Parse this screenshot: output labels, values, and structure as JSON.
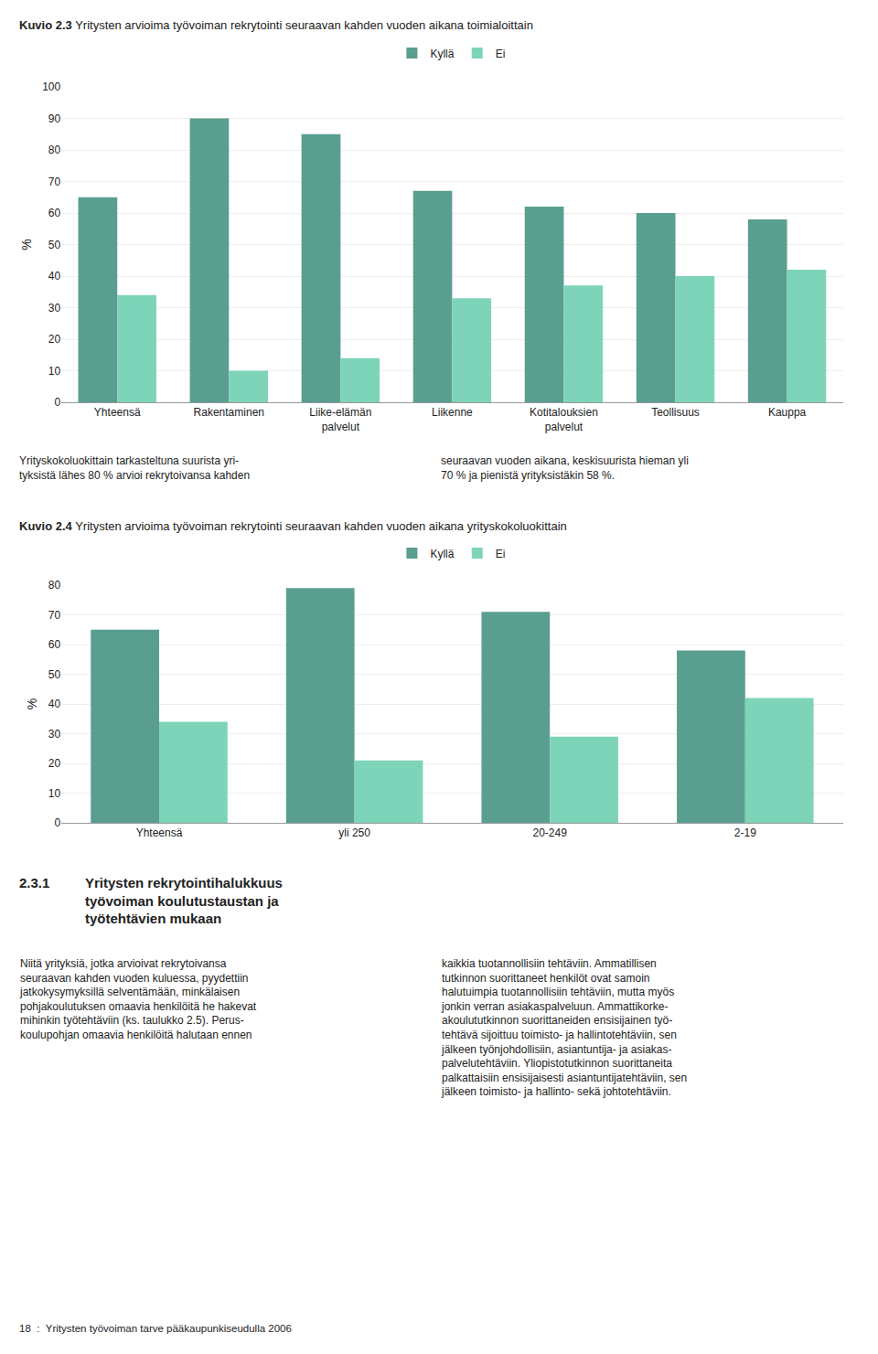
{
  "chart_data": [
    {
      "type": "bar",
      "title": "Kuvio 2.3",
      "subtitle": "Yritysten arvioima työvoiman rekrytointi seuraavan kahden vuoden aikana toimialoittain",
      "ylabel": "%",
      "categories": [
        "Yhteensä",
        "Rakentaminen",
        "Liike-elämän\npalvelut",
        "Liikenne",
        "Kotitalouksien\npalvelut",
        "Teollisuus",
        "Kauppa"
      ],
      "series": [
        {
          "name": "Kyllä",
          "color": "#5a9e8f",
          "values": [
            65,
            90,
            85,
            67,
            62,
            60,
            58
          ]
        },
        {
          "name": "Ei",
          "color": "#7dd4b8",
          "values": [
            34,
            10,
            14,
            33,
            37,
            40,
            42
          ]
        }
      ],
      "ylim": [
        0,
        100
      ],
      "yticks": [
        0,
        10,
        20,
        30,
        40,
        50,
        60,
        70,
        80,
        90,
        100
      ],
      "grid": true,
      "legend": "top",
      "annotations": [
        "Yrityskokoluokittain tarkasteltuna suurista yri-\ntyksistä lähes 80 % arvioi rekrytoivansa kahden",
        "seuraavan vuoden aikana, keskisuurista hieman yli\n70 % ja pienistä yrityksistäkin 58 %."
      ]
    },
    {
      "type": "bar",
      "title": "Kuvio 2.4",
      "subtitle": "Yritysten arvioima työvoiman rekrytointi seuraavan kahden vuoden aikana yrityskokoluokittain",
      "ylabel": "%",
      "categories": [
        "Yhteensä",
        "yli 250",
        "20-249",
        "2-19"
      ],
      "series": [
        {
          "name": "Kyllä",
          "color": "#5a9e8f",
          "values": [
            65,
            79,
            71,
            58
          ]
        },
        {
          "name": "Ei",
          "color": "#7dd4b8",
          "values": [
            34,
            21,
            29,
            42
          ]
        }
      ],
      "ylim": [
        0,
        80
      ],
      "yticks": [
        0,
        10,
        20,
        30,
        40,
        50,
        60,
        70,
        80
      ],
      "grid": true,
      "legend": "top",
      "annotations": [
        "2.3.1",
        "Yritysten rekrytointihalukkuus\ntyövoiman koulutustaustan ja\ntyötehtävien mukaan",
        "Niitä yrityksiä, jotka arvioivat rekrytoivansa\nseuraavan kahden vuoden kuluessa, pyydettiin\njatkokysymyksillä selventämään, minkälaisen\npohjakoulutuksen omaavia henkilöitä he hakevat\nmihinkin työtehtäviin (ks. taulukko 2.5). Perus-\nkoulupohjan omaavia henkilöitä halutaan ennen",
        "kaikkia tuotannollisiin tehtäviin. Ammatillisen\ntutkinnon suorittaneet henkilöt ovat samoin\nhalutuimpia tuotannollisiin tehtäviin, mutta myös\njonkin verran asiakaspalveluun. Ammattikorke-\nakoulututkinnon suorittaneiden ensisijainen työ-\ntehtävä sijoittuu toimisto- ja hallintotehtäviin, sen\njälkeen työnjohdollisiin, asiantuntija- ja asiakas-\npalvelutehtäviin. Yliopistotutkinnon suorittaneita\npalkattaisiin ensisijaisesti asiantuntijatehtäviin, sen\njälkeen toimisto- ja hallinto- sekä johtotehtäviin.",
        "18  :  Yritysten työvoiman tarve pääkaupunkiseudulla 2006"
      ]
    }
  ]
}
